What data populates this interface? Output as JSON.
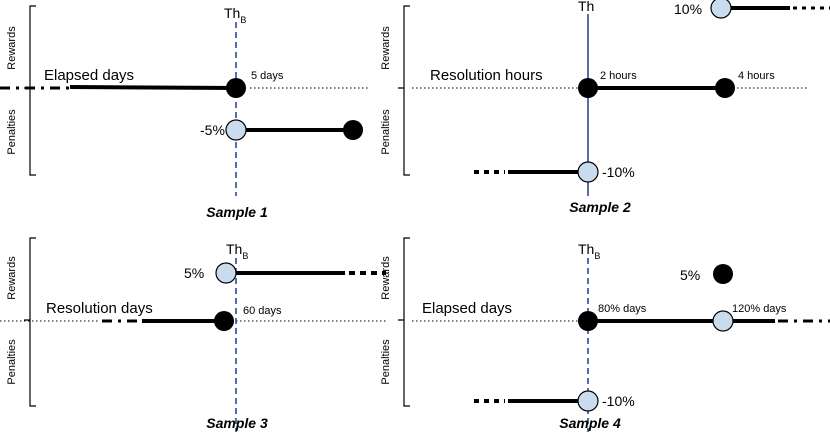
{
  "side_labels": {
    "rewards": "Rewards",
    "penalties": "Penalties"
  },
  "colors": {
    "threshold_dashed": "#1f3d99",
    "threshold_solid": "#1f3d99",
    "open_circle": "#c9dcee",
    "line": "#000000"
  },
  "panels": [
    {
      "caption": "Sample 1",
      "threshold_label": "Th",
      "threshold_sub": "B",
      "axis_label": "Elapsed days",
      "labels": {
        "p1": "5 days",
        "pen": "-5%"
      }
    },
    {
      "caption": "Sample 2",
      "threshold_label": "Th",
      "threshold_sub": "",
      "axis_label": "Resolution hours",
      "labels": {
        "p1": "2 hours",
        "p2": "4 hours",
        "rew": "10%",
        "pen": "-10%"
      }
    },
    {
      "caption": "Sample 3",
      "threshold_label": "Th",
      "threshold_sub": "B",
      "axis_label": "Resolution days",
      "labels": {
        "p1": "60 days",
        "rew": "5%"
      }
    },
    {
      "caption": "Sample 4",
      "threshold_label": "Th",
      "threshold_sub": "B",
      "axis_label": "Elapsed days",
      "labels": {
        "p1": "80% days",
        "p2": "120% days",
        "rew": "5%",
        "pen": "-10%"
      }
    }
  ]
}
